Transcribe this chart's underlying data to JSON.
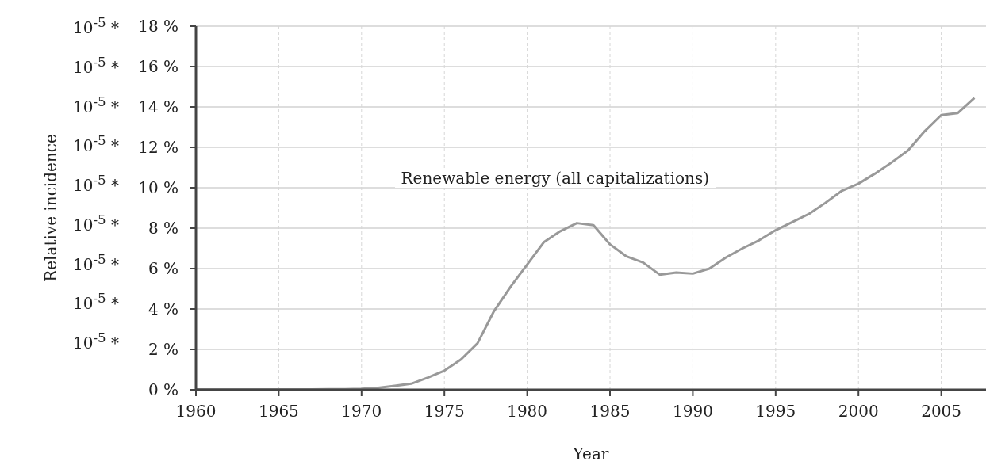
{
  "chart_data": {
    "type": "line",
    "xlabel": "Year",
    "ylabel": "Relative incidence",
    "x": [
      1960,
      1961,
      1962,
      1963,
      1964,
      1965,
      1966,
      1967,
      1968,
      1969,
      1970,
      1971,
      1972,
      1973,
      1974,
      1975,
      1976,
      1977,
      1978,
      1979,
      1980,
      1981,
      1982,
      1983,
      1984,
      1985,
      1986,
      1987,
      1988,
      1989,
      1990,
      1991,
      1992,
      1993,
      1994,
      1995,
      1996,
      1997,
      1998,
      1999,
      2000,
      2001,
      2002,
      2003,
      2004,
      2005,
      2006,
      2007
    ],
    "series": [
      {
        "name": "Renewable energy (all capitalizations)",
        "color": "#999999",
        "values": [
          0.02,
          0.02,
          0.02,
          0.02,
          0.02,
          0.02,
          0.02,
          0.02,
          0.03,
          0.03,
          0.05,
          0.1,
          0.2,
          0.3,
          0.6,
          0.95,
          1.5,
          2.3,
          3.9,
          5.1,
          6.2,
          7.3,
          7.85,
          8.25,
          8.15,
          7.2,
          6.6,
          6.3,
          5.7,
          5.8,
          5.75,
          6.0,
          6.55,
          7.0,
          7.4,
          7.9,
          8.3,
          8.7,
          9.25,
          9.85,
          10.2,
          10.7,
          11.25,
          11.85,
          12.8,
          13.6,
          13.7,
          14.45
        ]
      }
    ],
    "xlim": [
      1960,
      2007.7
    ],
    "xticks": [
      1960,
      1965,
      1970,
      1975,
      1980,
      1985,
      1990,
      1995,
      2000,
      2005
    ],
    "ylim": [
      0,
      18
    ],
    "yticks": [
      {
        "value": 0,
        "label": "0 %"
      },
      {
        "value": 2,
        "label": "2 %"
      },
      {
        "value": 4,
        "label": "4 %"
      },
      {
        "value": 6,
        "label": "6 %"
      },
      {
        "value": 8,
        "label": "8 %"
      },
      {
        "value": 10,
        "label": "10 %"
      },
      {
        "value": 12,
        "label": "12 %"
      },
      {
        "value": 14,
        "label": "14 %"
      },
      {
        "value": 16,
        "label": "16 %"
      },
      {
        "value": 18,
        "label": "18 %"
      }
    ],
    "annotations": [
      "10$^{-5}$ *",
      "10$^{-5}$ *",
      "10$^{-5}$ *",
      "10$^{-5}$ *",
      "10$^{-5}$ *",
      "10$^{-5}$ *",
      "10$^{-5}$ *",
      "10$^{-5}$ *",
      "10$^{-5}$ *"
    ],
    "grid": true,
    "marker": "none",
    "line_style": "solid"
  }
}
